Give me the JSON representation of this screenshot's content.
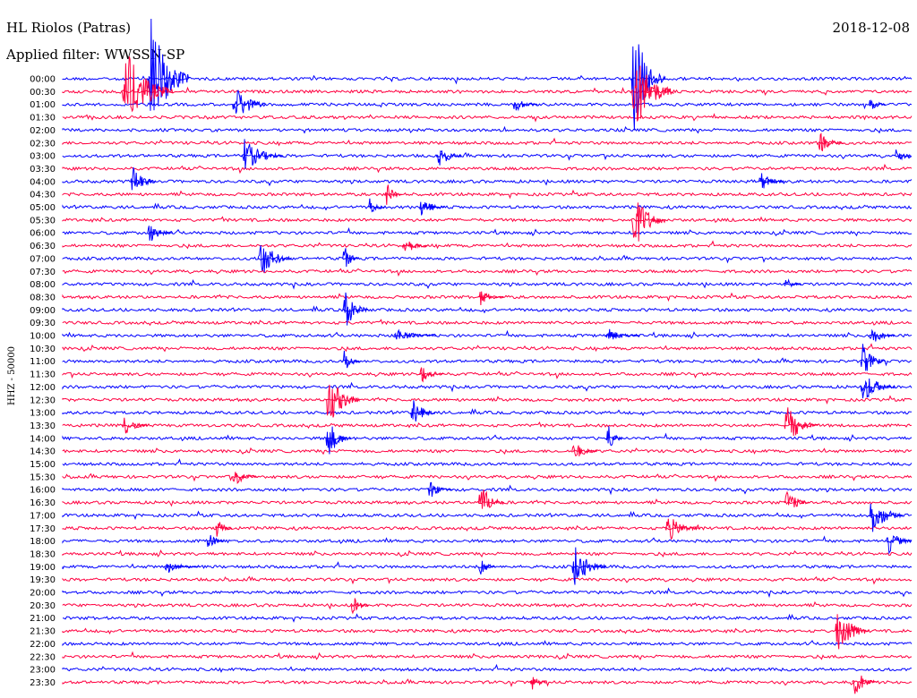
{
  "header": {
    "station": "HL Riolos (Patras)",
    "date": "2018-12-08",
    "filter": "Applied filter: WWSSN-SP"
  },
  "chart_data": {
    "type": "line",
    "title": "HL Riolos (Patras)",
    "date": "2018-12-08",
    "filter": "Applied filter: WWSSN-SP",
    "ylabel": "HHZ - 50000",
    "xlabel": "",
    "trace_interval_minutes": 30,
    "row_labels": [
      "00:00",
      "00:30",
      "01:00",
      "01:30",
      "02:00",
      "02:30",
      "03:00",
      "03:30",
      "04:00",
      "04:30",
      "05:00",
      "05:30",
      "06:00",
      "06:30",
      "07:00",
      "07:30",
      "08:00",
      "08:30",
      "09:00",
      "09:30",
      "10:00",
      "10:30",
      "11:00",
      "11:30",
      "12:00",
      "12:30",
      "13:00",
      "13:30",
      "14:00",
      "14:30",
      "15:00",
      "15:30",
      "16:00",
      "16:30",
      "17:00",
      "17:30",
      "18:00",
      "18:30",
      "19:00",
      "19:30",
      "20:00",
      "20:30",
      "21:00",
      "21:30",
      "22:00",
      "22:30",
      "23:00",
      "23:30"
    ],
    "colors": [
      "#0000ff",
      "#ff0040"
    ],
    "events": [
      {
        "row": 0,
        "x": 0.1,
        "amp": 90,
        "dur": 0.05
      },
      {
        "row": 1,
        "x": 0.07,
        "amp": 60,
        "dur": 0.06
      },
      {
        "row": 2,
        "x": 0.2,
        "amp": 30,
        "dur": 0.04
      },
      {
        "row": 0,
        "x": 0.67,
        "amp": 80,
        "dur": 0.04
      },
      {
        "row": 1,
        "x": 0.67,
        "amp": 60,
        "dur": 0.05
      },
      {
        "row": 2,
        "x": 0.53,
        "amp": 12,
        "dur": 0.03
      },
      {
        "row": 2,
        "x": 0.95,
        "amp": 12,
        "dur": 0.02
      },
      {
        "row": 5,
        "x": 0.89,
        "amp": 15,
        "dur": 0.03
      },
      {
        "row": 6,
        "x": 0.21,
        "amp": 25,
        "dur": 0.05
      },
      {
        "row": 6,
        "x": 0.44,
        "amp": 20,
        "dur": 0.03
      },
      {
        "row": 6,
        "x": 0.98,
        "amp": 15,
        "dur": 0.02
      },
      {
        "row": 8,
        "x": 0.08,
        "amp": 25,
        "dur": 0.03
      },
      {
        "row": 8,
        "x": 0.82,
        "amp": 15,
        "dur": 0.03
      },
      {
        "row": 9,
        "x": 0.38,
        "amp": 18,
        "dur": 0.02
      },
      {
        "row": 10,
        "x": 0.36,
        "amp": 15,
        "dur": 0.02
      },
      {
        "row": 10,
        "x": 0.42,
        "amp": 18,
        "dur": 0.03
      },
      {
        "row": 11,
        "x": 0.67,
        "amp": 45,
        "dur": 0.04
      },
      {
        "row": 12,
        "x": 0.1,
        "amp": 15,
        "dur": 0.03
      },
      {
        "row": 13,
        "x": 0.4,
        "amp": 15,
        "dur": 0.03
      },
      {
        "row": 14,
        "x": 0.23,
        "amp": 30,
        "dur": 0.04
      },
      {
        "row": 14,
        "x": 0.33,
        "amp": 20,
        "dur": 0.02
      },
      {
        "row": 16,
        "x": 0.85,
        "amp": 12,
        "dur": 0.02
      },
      {
        "row": 17,
        "x": 0.49,
        "amp": 12,
        "dur": 0.03
      },
      {
        "row": 18,
        "x": 0.33,
        "amp": 30,
        "dur": 0.03
      },
      {
        "row": 20,
        "x": 0.39,
        "amp": 10,
        "dur": 0.05
      },
      {
        "row": 20,
        "x": 0.64,
        "amp": 10,
        "dur": 0.04
      },
      {
        "row": 20,
        "x": 0.95,
        "amp": 15,
        "dur": 0.03
      },
      {
        "row": 22,
        "x": 0.33,
        "amp": 20,
        "dur": 0.02
      },
      {
        "row": 22,
        "x": 0.94,
        "amp": 25,
        "dur": 0.03
      },
      {
        "row": 23,
        "x": 0.42,
        "amp": 15,
        "dur": 0.03
      },
      {
        "row": 24,
        "x": 0.94,
        "amp": 25,
        "dur": 0.04
      },
      {
        "row": 25,
        "x": 0.31,
        "amp": 40,
        "dur": 0.04
      },
      {
        "row": 26,
        "x": 0.41,
        "amp": 20,
        "dur": 0.03
      },
      {
        "row": 27,
        "x": 0.07,
        "amp": 15,
        "dur": 0.03
      },
      {
        "row": 27,
        "x": 0.85,
        "amp": 30,
        "dur": 0.04
      },
      {
        "row": 28,
        "x": 0.31,
        "amp": 30,
        "dur": 0.03
      },
      {
        "row": 28,
        "x": 0.64,
        "amp": 25,
        "dur": 0.02
      },
      {
        "row": 29,
        "x": 0.6,
        "amp": 15,
        "dur": 0.03
      },
      {
        "row": 31,
        "x": 0.2,
        "amp": 15,
        "dur": 0.03
      },
      {
        "row": 32,
        "x": 0.43,
        "amp": 15,
        "dur": 0.03
      },
      {
        "row": 33,
        "x": 0.49,
        "amp": 30,
        "dur": 0.03
      },
      {
        "row": 33,
        "x": 0.85,
        "amp": 20,
        "dur": 0.03
      },
      {
        "row": 34,
        "x": 0.95,
        "amp": 30,
        "dur": 0.04
      },
      {
        "row": 35,
        "x": 0.18,
        "amp": 15,
        "dur": 0.02
      },
      {
        "row": 35,
        "x": 0.71,
        "amp": 20,
        "dur": 0.04
      },
      {
        "row": 36,
        "x": 0.17,
        "amp": 15,
        "dur": 0.02
      },
      {
        "row": 36,
        "x": 0.97,
        "amp": 20,
        "dur": 0.03
      },
      {
        "row": 38,
        "x": 0.12,
        "amp": 10,
        "dur": 0.04
      },
      {
        "row": 38,
        "x": 0.6,
        "amp": 30,
        "dur": 0.04
      },
      {
        "row": 38,
        "x": 0.49,
        "amp": 20,
        "dur": 0.02
      },
      {
        "row": 41,
        "x": 0.34,
        "amp": 15,
        "dur": 0.02
      },
      {
        "row": 43,
        "x": 0.91,
        "amp": 40,
        "dur": 0.04
      },
      {
        "row": 47,
        "x": 0.55,
        "amp": 15,
        "dur": 0.02
      },
      {
        "row": 47,
        "x": 0.93,
        "amp": 25,
        "dur": 0.03
      }
    ]
  }
}
